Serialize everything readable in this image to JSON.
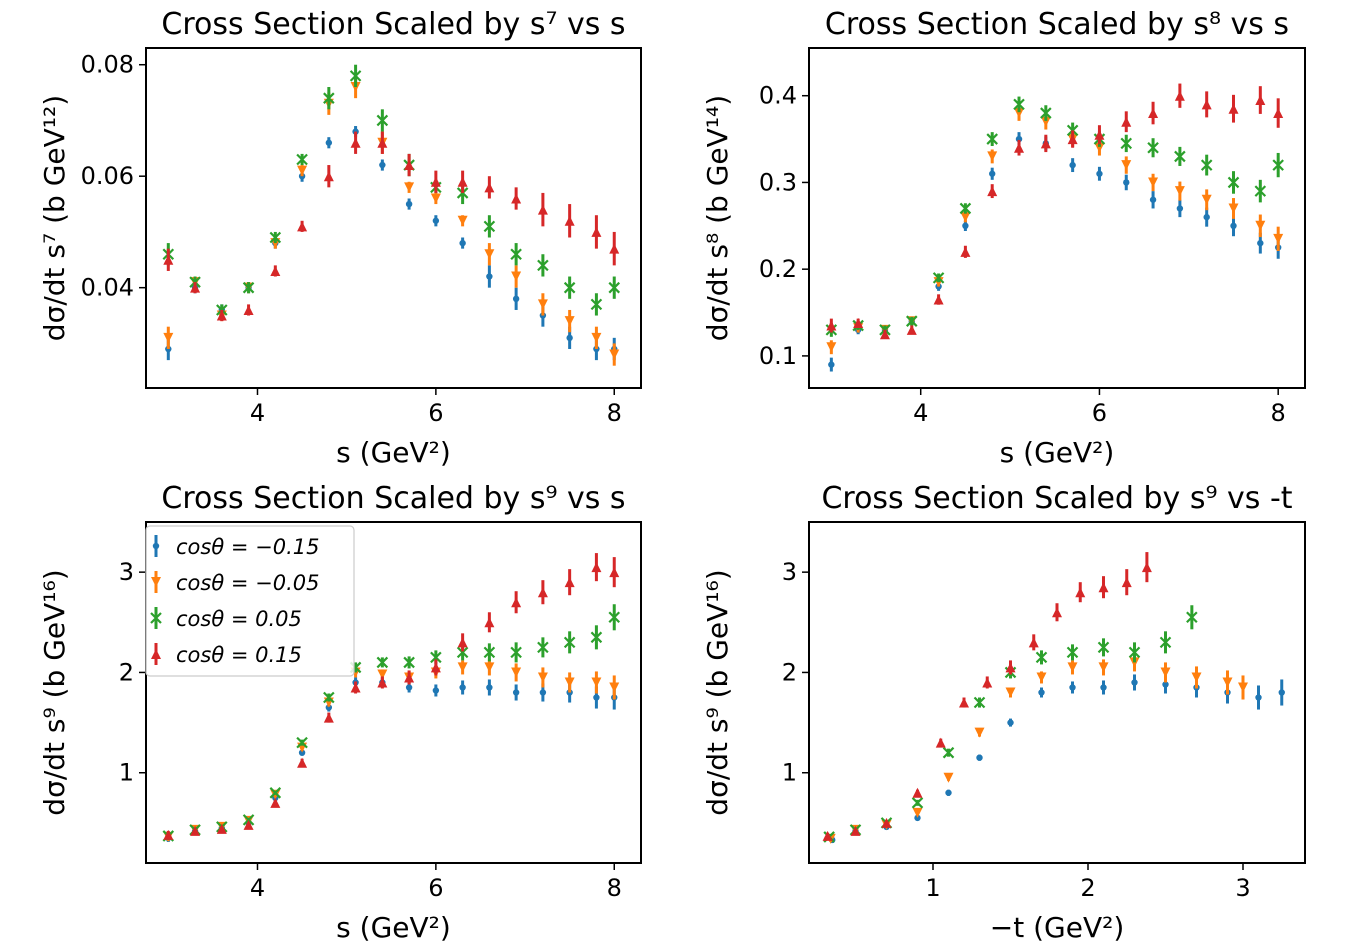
{
  "figure": {
    "legend": {
      "placement": "upper-left of third panel",
      "entries": [
        {
          "label": "cosθ = −0.15",
          "color": "#1f77b4",
          "marker": "circle"
        },
        {
          "label": "cosθ = −0.05",
          "color": "#ff7f0e",
          "marker": "triangle-down"
        },
        {
          "label": "cosθ = 0.05",
          "color": "#2ca02c",
          "marker": "x"
        },
        {
          "label": "cosθ = 0.15",
          "color": "#d62728",
          "marker": "triangle-up"
        }
      ]
    }
  },
  "chart_data": [
    {
      "type": "scatter",
      "title": "Cross Section Scaled by s⁷ vs s",
      "xlabel": "s (GeV²)",
      "ylabel": "dσ/dt s⁷ (b GeV¹²)",
      "xlim": [
        2.75,
        8.3
      ],
      "ylim": [
        0.022,
        0.083
      ],
      "xticks": [
        4,
        6,
        8
      ],
      "xticklabels": [
        "4",
        "6",
        "8"
      ],
      "yticks": [
        0.04,
        0.06,
        0.08
      ],
      "yticklabels": [
        "0.04",
        "0.06",
        "0.08"
      ],
      "x": [
        3.0,
        3.3,
        3.6,
        3.9,
        4.2,
        4.5,
        4.8,
        5.1,
        5.4,
        5.7,
        6.0,
        6.3,
        6.6,
        6.9,
        7.2,
        7.5,
        7.8,
        8.0
      ],
      "series": [
        {
          "name": "cosθ = −0.15",
          "values": [
            0.029,
            0.04,
            0.036,
            0.04,
            0.048,
            0.06,
            0.066,
            0.068,
            0.062,
            0.055,
            0.052,
            0.048,
            0.042,
            0.038,
            0.035,
            0.031,
            0.029,
            0.029
          ],
          "errors": [
            0.002,
            0.001,
            0.001,
            0.001,
            0.001,
            0.001,
            0.001,
            0.001,
            0.001,
            0.001,
            0.001,
            0.001,
            0.002,
            0.002,
            0.002,
            0.002,
            0.002,
            0.002
          ]
        },
        {
          "name": "cosθ = −0.05",
          "values": [
            0.031,
            0.041,
            0.035,
            0.04,
            0.048,
            0.061,
            0.073,
            0.076,
            0.066,
            0.058,
            0.056,
            0.052,
            0.046,
            0.042,
            0.037,
            0.034,
            0.031,
            0.028
          ],
          "errors": [
            0.002,
            0.001,
            0.001,
            0.001,
            0.001,
            0.001,
            0.002,
            0.002,
            0.002,
            0.001,
            0.001,
            0.001,
            0.002,
            0.002,
            0.002,
            0.002,
            0.002,
            0.002
          ]
        },
        {
          "name": "cosθ = 0.05",
          "values": [
            0.046,
            0.041,
            0.036,
            0.04,
            0.049,
            0.063,
            0.074,
            0.078,
            0.07,
            0.062,
            0.058,
            0.057,
            0.051,
            0.046,
            0.044,
            0.04,
            0.037,
            0.04
          ],
          "errors": [
            0.002,
            0.001,
            0.001,
            0.001,
            0.001,
            0.001,
            0.002,
            0.002,
            0.002,
            0.002,
            0.001,
            0.002,
            0.002,
            0.002,
            0.002,
            0.002,
            0.002,
            0.002
          ]
        },
        {
          "name": "cosθ = 0.15",
          "values": [
            0.045,
            0.04,
            0.035,
            0.036,
            0.043,
            0.051,
            0.06,
            0.066,
            0.066,
            0.062,
            0.059,
            0.059,
            0.058,
            0.056,
            0.054,
            0.052,
            0.05,
            0.047
          ],
          "errors": [
            0.002,
            0.001,
            0.001,
            0.001,
            0.001,
            0.001,
            0.002,
            0.002,
            0.002,
            0.002,
            0.002,
            0.002,
            0.002,
            0.002,
            0.003,
            0.003,
            0.003,
            0.003
          ]
        }
      ]
    },
    {
      "type": "scatter",
      "title": "Cross Section Scaled by s⁸ vs s",
      "xlabel": "s (GeV²)",
      "ylabel": "dσ/dt s⁸ (b GeV¹⁴)",
      "xlim": [
        2.75,
        8.3
      ],
      "ylim": [
        0.063,
        0.455
      ],
      "xticks": [
        4,
        6,
        8
      ],
      "xticklabels": [
        "4",
        "6",
        "8"
      ],
      "yticks": [
        0.1,
        0.2,
        0.3,
        0.4
      ],
      "yticklabels": [
        "0.1",
        "0.2",
        "0.3",
        "0.4"
      ],
      "x": [
        3.0,
        3.3,
        3.6,
        3.9,
        4.2,
        4.5,
        4.8,
        5.1,
        5.4,
        5.7,
        6.0,
        6.3,
        6.6,
        6.9,
        7.2,
        7.5,
        7.8,
        8.0
      ],
      "series": [
        {
          "name": "cosθ = −0.15",
          "values": [
            0.09,
            0.13,
            0.13,
            0.14,
            0.18,
            0.25,
            0.31,
            0.35,
            0.345,
            0.32,
            0.31,
            0.3,
            0.28,
            0.27,
            0.26,
            0.25,
            0.23,
            0.225
          ],
          "errors": [
            0.008,
            0.005,
            0.005,
            0.005,
            0.005,
            0.006,
            0.007,
            0.008,
            0.008,
            0.008,
            0.008,
            0.009,
            0.01,
            0.01,
            0.011,
            0.012,
            0.012,
            0.013
          ]
        },
        {
          "name": "cosθ = −0.05",
          "values": [
            0.11,
            0.132,
            0.13,
            0.14,
            0.185,
            0.26,
            0.33,
            0.38,
            0.37,
            0.35,
            0.34,
            0.32,
            0.3,
            0.29,
            0.28,
            0.27,
            0.25,
            0.235
          ],
          "errors": [
            0.008,
            0.005,
            0.005,
            0.005,
            0.005,
            0.006,
            0.008,
            0.009,
            0.009,
            0.009,
            0.009,
            0.01,
            0.01,
            0.011,
            0.012,
            0.012,
            0.013,
            0.014
          ]
        },
        {
          "name": "cosθ = 0.05",
          "values": [
            0.13,
            0.135,
            0.13,
            0.14,
            0.19,
            0.27,
            0.35,
            0.39,
            0.38,
            0.36,
            0.35,
            0.345,
            0.34,
            0.33,
            0.32,
            0.3,
            0.29,
            0.32
          ],
          "errors": [
            0.008,
            0.005,
            0.005,
            0.005,
            0.005,
            0.006,
            0.008,
            0.009,
            0.009,
            0.009,
            0.009,
            0.01,
            0.011,
            0.011,
            0.012,
            0.013,
            0.013,
            0.014
          ]
        },
        {
          "name": "cosθ = 0.15",
          "values": [
            0.135,
            0.138,
            0.125,
            0.13,
            0.165,
            0.22,
            0.29,
            0.34,
            0.345,
            0.35,
            0.355,
            0.37,
            0.38,
            0.4,
            0.39,
            0.385,
            0.395,
            0.38
          ],
          "errors": [
            0.008,
            0.005,
            0.005,
            0.005,
            0.006,
            0.007,
            0.008,
            0.009,
            0.01,
            0.01,
            0.011,
            0.012,
            0.013,
            0.014,
            0.015,
            0.016,
            0.016,
            0.017
          ]
        }
      ]
    },
    {
      "type": "scatter",
      "title": "Cross Section Scaled by s⁹ vs s",
      "xlabel": "s (GeV²)",
      "ylabel": "dσ/dt s⁹ (b GeV¹⁶)",
      "xlim": [
        2.75,
        8.3
      ],
      "ylim": [
        0.1,
        3.5
      ],
      "xticks": [
        4,
        6,
        8
      ],
      "xticklabels": [
        "4",
        "6",
        "8"
      ],
      "yticks": [
        1,
        2,
        3
      ],
      "yticklabels": [
        "1",
        "2",
        "3"
      ],
      "x": [
        3.0,
        3.3,
        3.6,
        3.9,
        4.2,
        4.5,
        4.8,
        5.1,
        5.4,
        5.7,
        6.0,
        6.3,
        6.6,
        6.9,
        7.2,
        7.5,
        7.8,
        8.0
      ],
      "series": [
        {
          "name": "cosθ = −0.15",
          "values": [
            0.35,
            0.42,
            0.45,
            0.5,
            0.75,
            1.2,
            1.65,
            1.9,
            1.9,
            1.85,
            1.82,
            1.85,
            1.85,
            1.8,
            1.8,
            1.8,
            1.75,
            1.75
          ],
          "errors": [
            0.04,
            0.02,
            0.02,
            0.02,
            0.02,
            0.03,
            0.04,
            0.05,
            0.05,
            0.05,
            0.06,
            0.07,
            0.08,
            0.08,
            0.09,
            0.1,
            0.11,
            0.12
          ]
        },
        {
          "name": "cosθ = −0.05",
          "values": [
            0.36,
            0.43,
            0.46,
            0.52,
            0.78,
            1.25,
            1.7,
            2.0,
            1.98,
            1.95,
            2.0,
            2.05,
            2.05,
            2.0,
            1.95,
            1.9,
            1.9,
            1.85
          ],
          "errors": [
            0.04,
            0.02,
            0.02,
            0.02,
            0.02,
            0.03,
            0.04,
            0.05,
            0.05,
            0.06,
            0.06,
            0.07,
            0.08,
            0.09,
            0.1,
            0.1,
            0.11,
            0.12
          ]
        },
        {
          "name": "cosθ = 0.05",
          "values": [
            0.37,
            0.43,
            0.46,
            0.53,
            0.8,
            1.3,
            1.75,
            2.05,
            2.1,
            2.1,
            2.15,
            2.2,
            2.2,
            2.2,
            2.25,
            2.3,
            2.35,
            2.55
          ],
          "errors": [
            0.04,
            0.02,
            0.02,
            0.02,
            0.02,
            0.03,
            0.04,
            0.05,
            0.05,
            0.06,
            0.07,
            0.08,
            0.09,
            0.1,
            0.1,
            0.11,
            0.12,
            0.13
          ]
        },
        {
          "name": "cosθ = 0.15",
          "values": [
            0.38,
            0.42,
            0.44,
            0.48,
            0.7,
            1.1,
            1.55,
            1.85,
            1.9,
            1.95,
            2.05,
            2.3,
            2.5,
            2.7,
            2.8,
            2.9,
            3.05,
            3.0
          ],
          "errors": [
            0.04,
            0.02,
            0.02,
            0.02,
            0.03,
            0.04,
            0.05,
            0.06,
            0.06,
            0.07,
            0.08,
            0.09,
            0.1,
            0.11,
            0.12,
            0.13,
            0.14,
            0.15
          ]
        }
      ]
    },
    {
      "type": "scatter",
      "title": "Cross Section Scaled by s⁹ vs -t",
      "xlabel": "−t (GeV²)",
      "ylabel": "dσ/dt s⁹ (b GeV¹⁶)",
      "xlim": [
        0.2,
        3.4
      ],
      "ylim": [
        0.1,
        3.5
      ],
      "xticks": [
        1,
        2,
        3
      ],
      "xticklabels": [
        "1",
        "2",
        "3"
      ],
      "yticks": [
        1,
        2,
        3
      ],
      "yticklabels": [
        "1",
        "2",
        "3"
      ],
      "series": [
        {
          "name": "cosθ = −0.15",
          "x": [
            0.35,
            0.5,
            0.7,
            0.9,
            1.1,
            1.3,
            1.5,
            1.7,
            1.9,
            2.1,
            2.3,
            2.5,
            2.7,
            2.9,
            3.1,
            3.25
          ],
          "values": [
            0.33,
            0.42,
            0.46,
            0.55,
            0.8,
            1.15,
            1.5,
            1.8,
            1.85,
            1.85,
            1.9,
            1.88,
            1.85,
            1.8,
            1.75,
            1.8
          ],
          "errors": [
            0.03,
            0.02,
            0.02,
            0.02,
            0.03,
            0.03,
            0.04,
            0.05,
            0.06,
            0.07,
            0.08,
            0.09,
            0.1,
            0.11,
            0.12,
            0.13
          ]
        },
        {
          "name": "cosθ = −0.05",
          "x": [
            0.34,
            0.5,
            0.7,
            0.9,
            1.1,
            1.3,
            1.5,
            1.7,
            1.9,
            2.1,
            2.3,
            2.5,
            2.7,
            2.9,
            3.0
          ],
          "values": [
            0.34,
            0.43,
            0.48,
            0.6,
            0.95,
            1.4,
            1.8,
            1.95,
            2.05,
            2.05,
            2.1,
            2.0,
            1.95,
            1.9,
            1.85
          ],
          "errors": [
            0.03,
            0.02,
            0.02,
            0.02,
            0.03,
            0.04,
            0.05,
            0.06,
            0.07,
            0.08,
            0.09,
            0.1,
            0.11,
            0.12,
            0.12
          ]
        },
        {
          "name": "cosθ = 0.05",
          "x": [
            0.33,
            0.5,
            0.7,
            0.9,
            1.1,
            1.3,
            1.5,
            1.7,
            1.9,
            2.1,
            2.3,
            2.5,
            2.67
          ],
          "values": [
            0.36,
            0.43,
            0.5,
            0.7,
            1.2,
            1.7,
            2.0,
            2.15,
            2.2,
            2.25,
            2.2,
            2.3,
            2.55
          ],
          "errors": [
            0.03,
            0.02,
            0.02,
            0.03,
            0.04,
            0.05,
            0.06,
            0.07,
            0.08,
            0.09,
            0.1,
            0.11,
            0.12
          ]
        },
        {
          "name": "cosθ = 0.15",
          "x": [
            0.32,
            0.5,
            0.7,
            0.9,
            1.05,
            1.2,
            1.35,
            1.5,
            1.65,
            1.8,
            1.95,
            2.1,
            2.25,
            2.38
          ],
          "values": [
            0.37,
            0.42,
            0.5,
            0.8,
            1.3,
            1.7,
            1.9,
            2.05,
            2.3,
            2.6,
            2.8,
            2.85,
            2.9,
            3.05
          ],
          "errors": [
            0.03,
            0.02,
            0.02,
            0.03,
            0.04,
            0.05,
            0.06,
            0.07,
            0.08,
            0.09,
            0.1,
            0.11,
            0.13,
            0.15
          ]
        }
      ]
    }
  ]
}
